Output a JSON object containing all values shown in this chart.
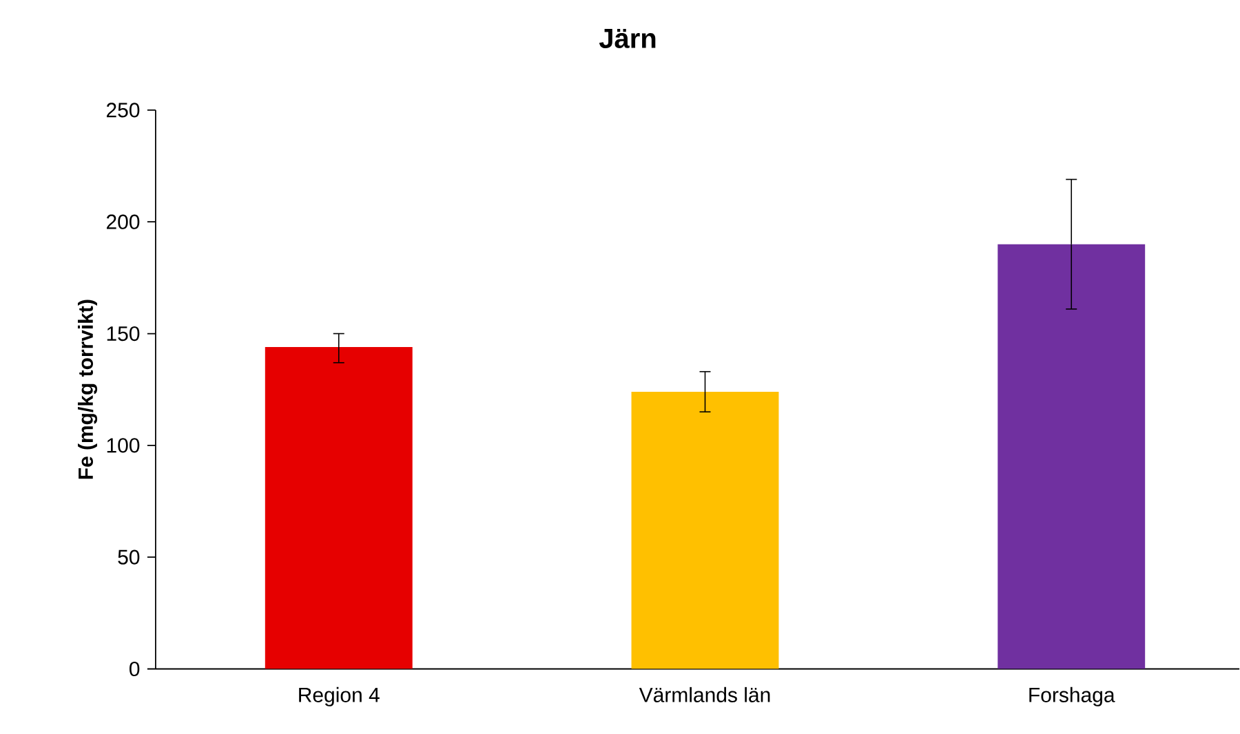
{
  "chart_data": {
    "type": "bar",
    "title": "Järn",
    "ylabel": "Fe (mg/kg torrvikt)",
    "categories": [
      "Region 4",
      "Värmlands län",
      "Forshaga"
    ],
    "values": [
      144,
      124,
      190
    ],
    "colors": [
      "#e60000",
      "#ffc000",
      "#7030a0"
    ],
    "errors": [
      [
        137,
        150
      ],
      [
        115,
        133
      ],
      [
        161,
        219
      ]
    ],
    "ylim": [
      0,
      250
    ],
    "yticks": [
      0,
      50,
      100,
      150,
      200,
      250
    ],
    "grid": false
  }
}
